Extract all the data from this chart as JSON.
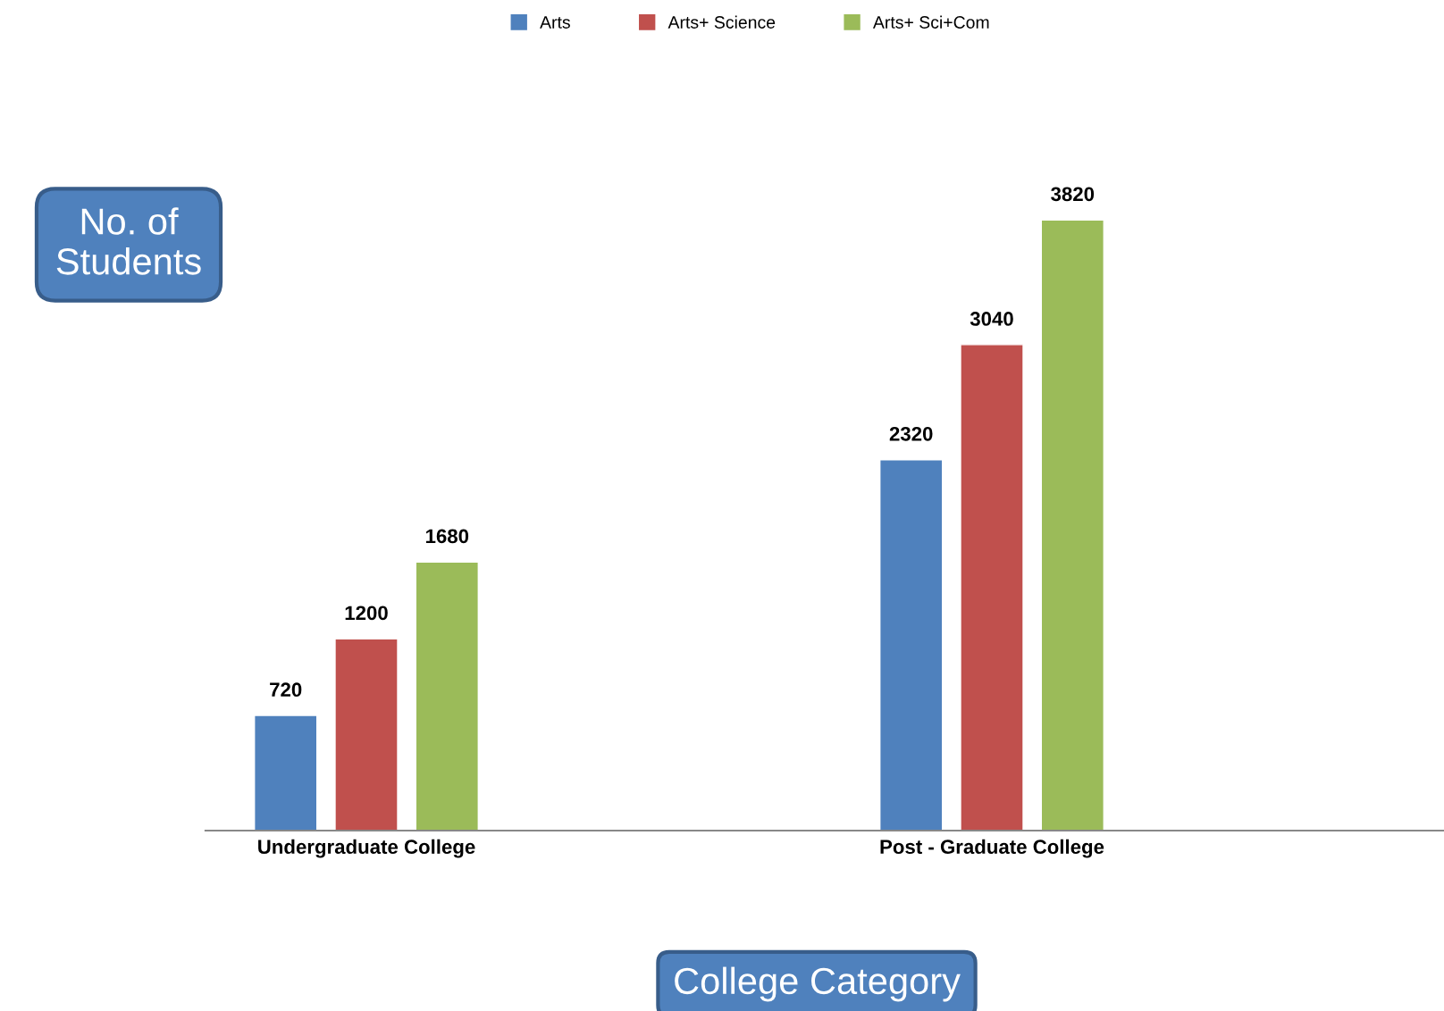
{
  "chart_data": {
    "type": "bar",
    "categories": [
      "Undergraduate College",
      "Post - Graduate College"
    ],
    "series": [
      {
        "name": "Arts",
        "color": "#4f81bd",
        "values": [
          720,
          2320
        ]
      },
      {
        "name": "Arts+ Science",
        "color": "#c0504d",
        "values": [
          1200,
          3040
        ]
      },
      {
        "name": "Arts+ Sci+Com",
        "color": "#9bbb59",
        "values": [
          1680,
          3820
        ]
      }
    ],
    "xlabel": "College Category",
    "ylabel": "No. of Students",
    "data_labels": true,
    "legend": "top",
    "tick_labels": "x",
    "grid": false
  }
}
